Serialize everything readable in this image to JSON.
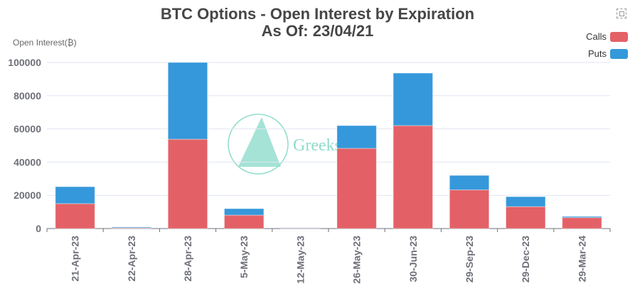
{
  "chart_data": {
    "type": "bar",
    "stacked": true,
    "title": "BTC Options - Open Interest by Expiration",
    "subtitle": "As Of: 23/04/21",
    "ylabel": "Open Interest(₿)",
    "xlabel": "",
    "ylim": [
      0,
      100000
    ],
    "yticks": [
      0,
      20000,
      40000,
      60000,
      80000,
      100000
    ],
    "grid": true,
    "legend_position": "top-right",
    "categories": [
      "21-Apr-23",
      "22-Apr-23",
      "28-Apr-23",
      "5-May-23",
      "12-May-23",
      "26-May-23",
      "30-Jun-23",
      "29-Sep-23",
      "29-Dec-23",
      "29-Mar-24"
    ],
    "series": [
      {
        "name": "Calls",
        "color": "#e36166",
        "values": [
          15000,
          400,
          53800,
          8100,
          300,
          48300,
          62000,
          23300,
          13200,
          6600
        ]
      },
      {
        "name": "Puts",
        "color": "#3598db",
        "values": [
          10200,
          500,
          46200,
          3900,
          200,
          13700,
          31600,
          8700,
          6000,
          700
        ]
      }
    ],
    "watermark": "GreeksLive"
  }
}
